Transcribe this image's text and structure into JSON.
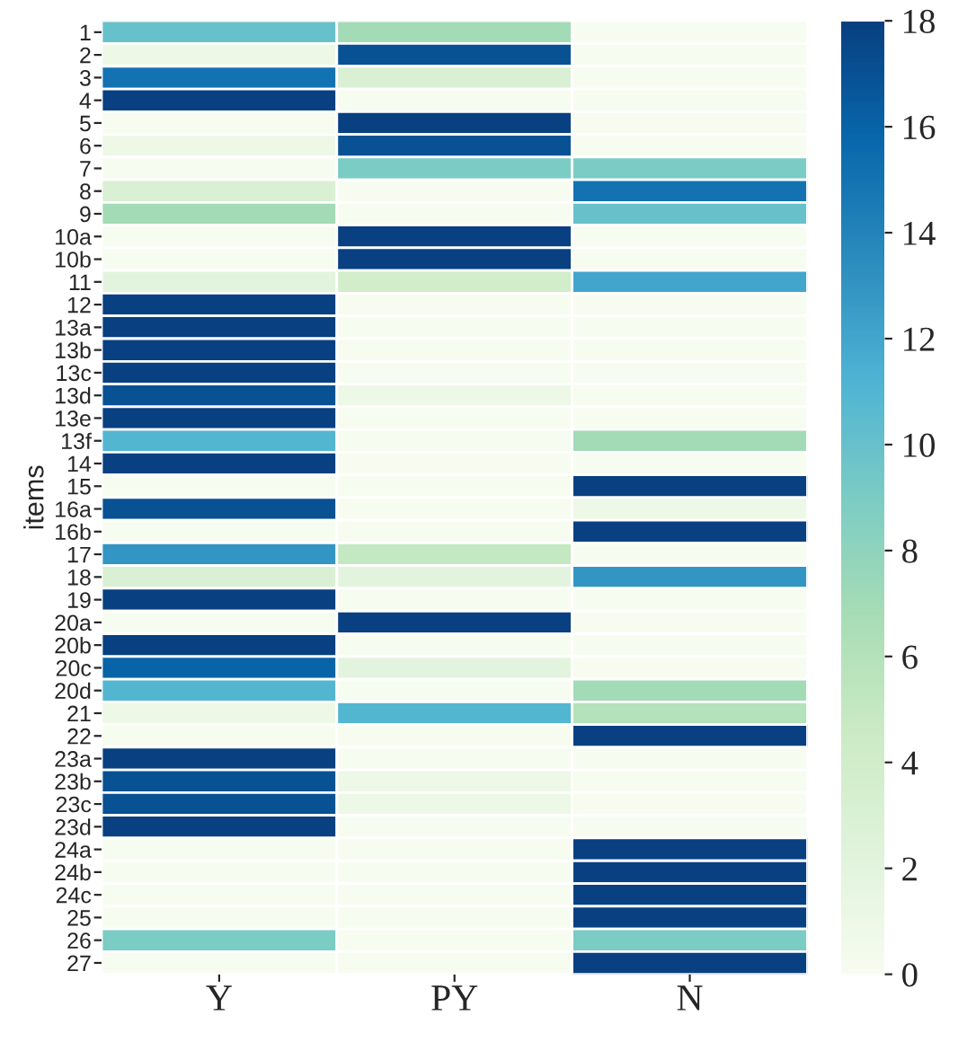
{
  "chart_data": {
    "type": "heatmap",
    "ylabel": "items",
    "categories": [
      "Y",
      "PY",
      "N"
    ],
    "y_categories": [
      "1",
      "2",
      "3",
      "4",
      "5",
      "6",
      "7",
      "8",
      "9",
      "10a",
      "10b",
      "11",
      "12",
      "13a",
      "13b",
      "13c",
      "13d",
      "13e",
      "13f",
      "14",
      "15",
      "16a",
      "16b",
      "17",
      "18",
      "19",
      "20a",
      "20b",
      "20c",
      "20d",
      "21",
      "22",
      "23a",
      "23b",
      "23c",
      "23d",
      "24a",
      "24b",
      "24c",
      "25",
      "26",
      "27"
    ],
    "cells": [
      [
        10,
        7,
        0
      ],
      [
        1,
        17,
        0
      ],
      [
        15,
        3,
        0
      ],
      [
        18,
        0,
        0
      ],
      [
        0,
        18,
        0
      ],
      [
        1,
        17,
        0
      ],
      [
        0,
        9,
        9
      ],
      [
        3,
        0,
        15
      ],
      [
        7,
        0,
        10
      ],
      [
        0,
        18,
        0
      ],
      [
        0,
        18,
        0
      ],
      [
        2,
        4,
        12
      ],
      [
        18,
        0,
        0
      ],
      [
        18,
        0,
        0
      ],
      [
        18,
        0,
        0
      ],
      [
        18,
        0,
        0
      ],
      [
        17,
        1,
        0
      ],
      [
        18,
        0,
        0
      ],
      [
        11,
        0,
        7
      ],
      [
        18,
        0,
        0
      ],
      [
        0,
        0,
        18
      ],
      [
        17,
        0,
        1
      ],
      [
        0,
        0,
        18
      ],
      [
        13,
        5,
        0
      ],
      [
        3,
        2,
        13
      ],
      [
        18,
        0,
        0
      ],
      [
        0,
        18,
        0
      ],
      [
        18,
        0,
        0
      ],
      [
        16,
        2,
        0
      ],
      [
        11,
        0,
        7
      ],
      [
        1,
        11,
        6
      ],
      [
        0,
        0,
        18
      ],
      [
        18,
        0,
        0
      ],
      [
        17,
        1,
        0
      ],
      [
        17,
        1,
        0
      ],
      [
        18,
        0,
        0
      ],
      [
        0,
        0,
        18
      ],
      [
        0,
        0,
        18
      ],
      [
        0,
        0,
        18
      ],
      [
        0,
        0,
        18
      ],
      [
        9,
        0,
        9
      ],
      [
        0,
        0,
        18
      ]
    ],
    "clim": [
      0,
      18
    ],
    "cticks": [
      0,
      2,
      4,
      6,
      8,
      10,
      12,
      14,
      16,
      18
    ]
  }
}
